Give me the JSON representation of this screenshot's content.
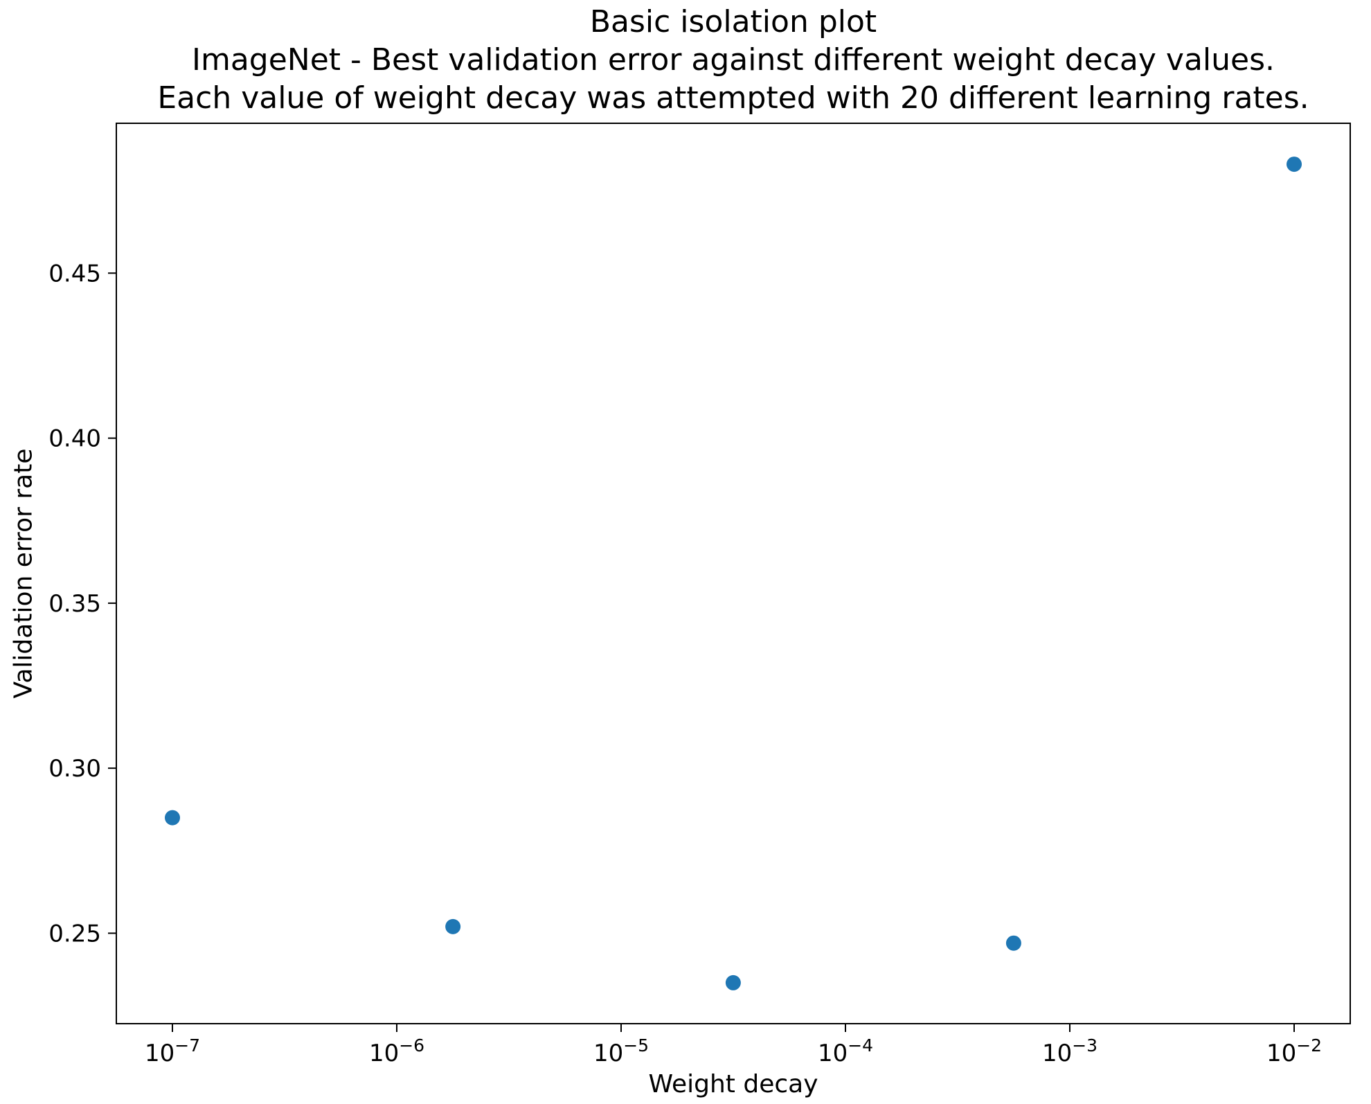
{
  "chart_data": {
    "type": "scatter",
    "title_lines": [
      "Basic isolation plot",
      "ImageNet - Best validation error against different weight decay values.",
      "Each value of weight decay was attempted with 20 different learning rates."
    ],
    "xlabel": "Weight decay",
    "ylabel": "Validation error rate",
    "x_scale": "log",
    "points": [
      {
        "x": 1e-07,
        "y": 0.285
      },
      {
        "x": 1.78e-06,
        "y": 0.252
      },
      {
        "x": 3.16e-05,
        "y": 0.235
      },
      {
        "x": 0.000562,
        "y": 0.247
      },
      {
        "x": 0.01,
        "y": 0.483
      }
    ],
    "xlim_log10": [
      -7.25,
      -1.75
    ],
    "ylim": [
      0.2226,
      0.4954
    ],
    "xticks_log10": [
      -7,
      -6,
      -5,
      -4,
      -3,
      -2
    ],
    "yticks": [
      0.25,
      0.3,
      0.35,
      0.4,
      0.45
    ],
    "marker_color": "#1f77b4",
    "marker_radius": 11,
    "grid": false,
    "legend_position": "none"
  }
}
